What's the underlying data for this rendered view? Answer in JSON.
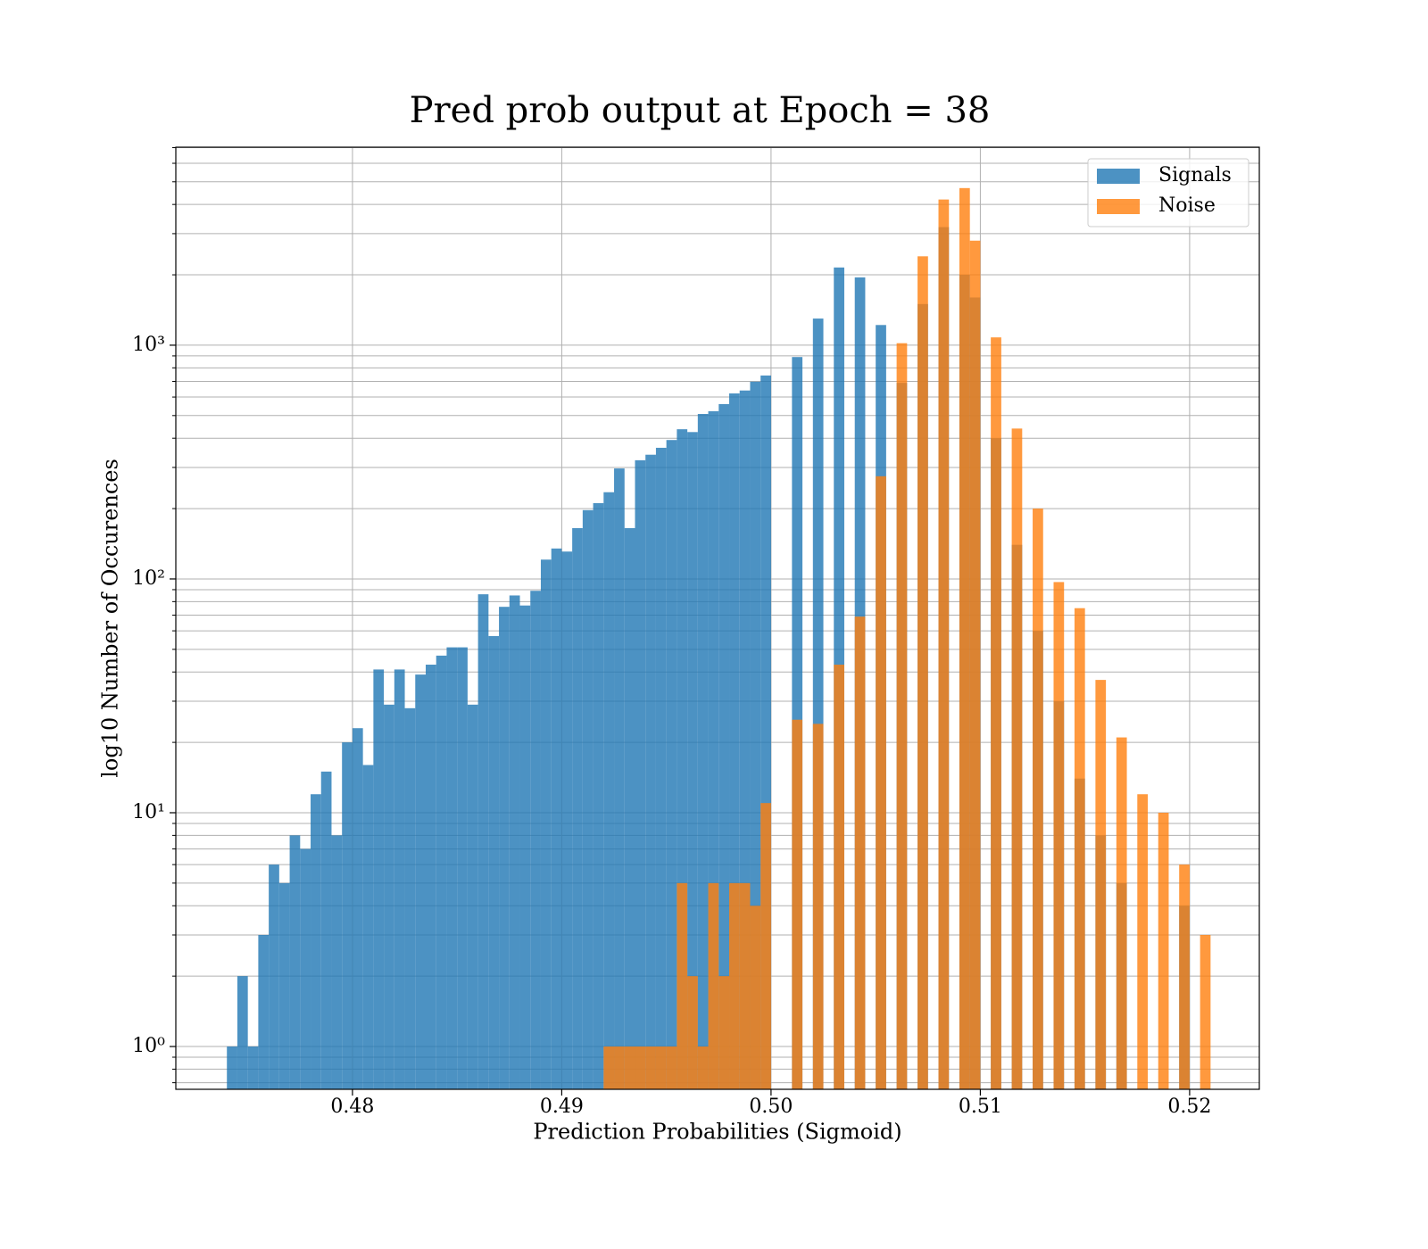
{
  "chart_data": {
    "type": "histogram",
    "title": "Pred prob output at Epoch = 38",
    "xlabel": "Prediction Probabilities (Sigmoid)",
    "ylabel": "log10 Number of Occurences",
    "bins": [
      0.474,
      0.4745,
      0.475,
      0.4755,
      0.476,
      0.4765,
      0.477,
      0.4775,
      0.478,
      0.4785,
      0.479,
      0.4795,
      0.48,
      0.4805,
      0.481,
      0.4815,
      0.482,
      0.4825,
      0.483,
      0.4835,
      0.484,
      0.4845,
      0.485,
      0.4855,
      0.486,
      0.4865,
      0.487,
      0.4875,
      0.488,
      0.4885,
      0.489,
      0.4895,
      0.49,
      0.4905,
      0.491,
      0.4915,
      0.492,
      0.4925,
      0.493,
      0.4935,
      0.494,
      0.4945,
      0.495,
      0.4955,
      0.496,
      0.4965,
      0.497,
      0.4975,
      0.498,
      0.4985,
      0.499,
      0.4995,
      0.5,
      0.5005,
      0.501,
      0.5015,
      0.502,
      0.5025,
      0.503,
      0.5035,
      0.504,
      0.5045,
      0.505,
      0.5055,
      0.506,
      0.5065,
      0.507,
      0.5075,
      0.508,
      0.5085,
      0.509,
      0.5095,
      0.51,
      0.5105,
      0.511,
      0.5115,
      0.512,
      0.5125,
      0.513,
      0.5135,
      0.514,
      0.5145,
      0.515,
      0.5155,
      0.516,
      0.5165,
      0.517,
      0.5175,
      0.518,
      0.5185,
      0.519,
      0.5195,
      0.52,
      0.5205,
      0.521
    ],
    "series": [
      {
        "name": "Signals",
        "color": "#1f77b4",
        "values": [
          1,
          2,
          1,
          3,
          6,
          5,
          8,
          7,
          12,
          15,
          8,
          20,
          23,
          16,
          41,
          29,
          41,
          28,
          39,
          43,
          47,
          51,
          51,
          29,
          86,
          57,
          76,
          85,
          77,
          89,
          121,
          135,
          131,
          165,
          197,
          211,
          235,
          297,
          165,
          322,
          340,
          364,
          393,
          437,
          425,
          508,
          522,
          560,
          622,
          640,
          698,
          742,
          0,
          0,
          890,
          0,
          1300,
          0,
          2150,
          0,
          1950,
          0,
          1220,
          0,
          690,
          0,
          1500,
          0,
          3200,
          0,
          2000,
          1600,
          0,
          400,
          0,
          140,
          0,
          60,
          0,
          30,
          0,
          14,
          0,
          8,
          0,
          5,
          0,
          0,
          0,
          0,
          0,
          4,
          0,
          0
        ]
      },
      {
        "name": "Noise",
        "color": "#ff7f0e",
        "values": [
          0,
          0,
          0,
          0,
          0,
          0,
          0,
          0,
          0,
          0,
          0,
          0,
          0,
          0,
          0,
          0,
          0,
          0,
          0,
          0,
          0,
          0,
          0,
          0,
          0,
          0,
          0,
          0,
          0,
          0,
          0,
          0,
          0,
          0,
          0,
          0,
          1,
          1,
          1,
          1,
          1,
          1,
          1,
          5,
          2,
          1,
          5,
          2,
          5,
          5,
          4,
          11,
          0,
          0,
          25,
          0,
          24,
          0,
          43,
          0,
          69,
          0,
          275,
          0,
          1020,
          0,
          2400,
          0,
          4200,
          0,
          4700,
          2800,
          0,
          1080,
          0,
          440,
          0,
          200,
          0,
          97,
          0,
          75,
          0,
          37,
          0,
          21,
          0,
          12,
          0,
          10,
          0,
          6,
          0,
          3
        ]
      }
    ],
    "alpha": 0.8,
    "xlim": [
      0.47156,
      0.52333
    ],
    "ylim": [
      0.656,
      7030
    ],
    "log_y": true,
    "xticks": [
      0.48,
      0.49,
      {
        "value": 0.5,
        "label": "0.50"
      },
      0.51,
      0.52
    ],
    "yticks": [
      {
        "value": 1,
        "label": "10⁰"
      },
      {
        "value": 10,
        "label": "10¹"
      },
      {
        "value": 100,
        "label": "10²"
      },
      {
        "value": 1000,
        "label": "10³"
      }
    ],
    "yminorticks": [
      0.7,
      0.8,
      0.9,
      2,
      3,
      4,
      5,
      6,
      7,
      8,
      9,
      20,
      30,
      40,
      50,
      60,
      70,
      80,
      90,
      200,
      300,
      400,
      500,
      600,
      700,
      800,
      900,
      2000,
      3000,
      4000,
      5000,
      6000,
      7000
    ],
    "grid": true,
    "legend": "upper right"
  }
}
